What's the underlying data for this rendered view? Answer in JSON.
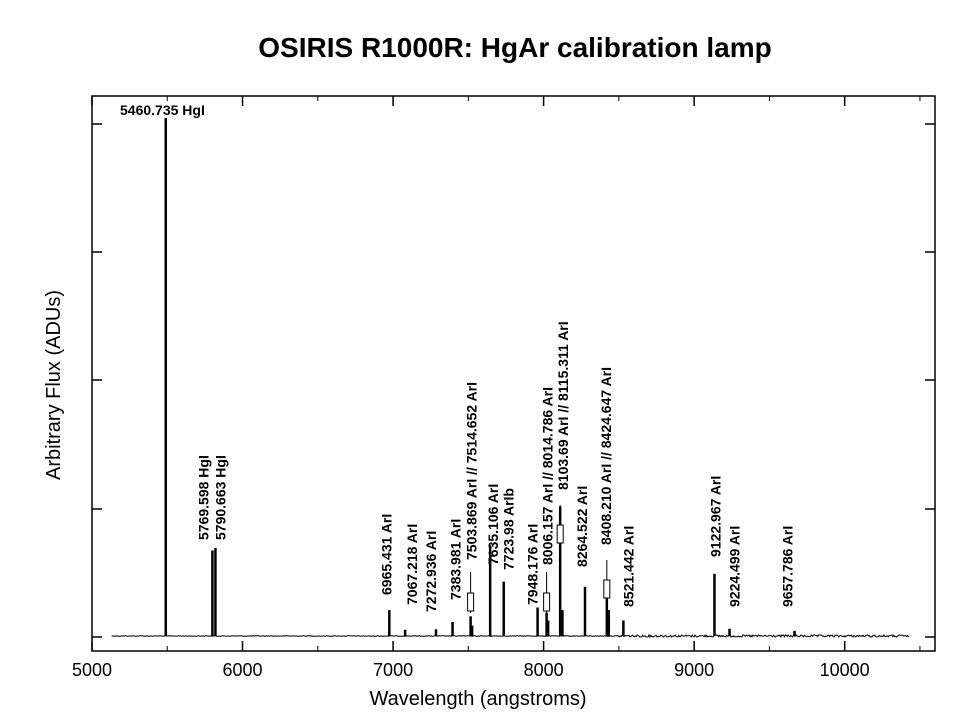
{
  "chart_data": {
    "type": "line",
    "title": "OSIRIS  R1000R:  HgAr calibration lamp",
    "xlabel": "Wavelength (angstroms)",
    "ylabel": "Arbitrary Flux (ADUs)",
    "xlim": [
      5000,
      10600
    ],
    "ylim": [
      0,
      1.05
    ],
    "x_ticks": [
      5000,
      6000,
      7000,
      8000,
      9000,
      10000
    ],
    "x_tick_labels": [
      "5000",
      "6000",
      "7000",
      "8000",
      "9000",
      "10000"
    ],
    "y_tick_labels": [],
    "grid": false,
    "legend": "none",
    "line_color": "#000000",
    "continuum_start": 5130,
    "continuum_end": 10430,
    "peaks": [
      {
        "x": 5490,
        "y": 1.0
      },
      {
        "x": 5800,
        "y": 0.165
      },
      {
        "x": 5820,
        "y": 0.17
      },
      {
        "x": 6975,
        "y": 0.05
      },
      {
        "x": 7080,
        "y": 0.012
      },
      {
        "x": 7285,
        "y": 0.013
      },
      {
        "x": 7395,
        "y": 0.027
      },
      {
        "x": 7515,
        "y": 0.038
      },
      {
        "x": 7525,
        "y": 0.02
      },
      {
        "x": 7645,
        "y": 0.175
      },
      {
        "x": 7735,
        "y": 0.105
      },
      {
        "x": 7960,
        "y": 0.055
      },
      {
        "x": 8020,
        "y": 0.045
      },
      {
        "x": 8030,
        "y": 0.03
      },
      {
        "x": 8110,
        "y": 0.25
      },
      {
        "x": 8125,
        "y": 0.05
      },
      {
        "x": 8275,
        "y": 0.095
      },
      {
        "x": 8420,
        "y": 0.095
      },
      {
        "x": 8433,
        "y": 0.05
      },
      {
        "x": 8530,
        "y": 0.03
      },
      {
        "x": 9135,
        "y": 0.12
      },
      {
        "x": 9235,
        "y": 0.014
      },
      {
        "x": 9667,
        "y": 0.01
      }
    ],
    "annotations": [
      {
        "wavelength": 5490,
        "text": "5460.735 HgI",
        "orientation": "horizontal"
      },
      {
        "wavelength": 5800,
        "text": "5769.598 HgI",
        "orientation": "vertical"
      },
      {
        "wavelength": 5820,
        "text": "5790.663 HgI",
        "orientation": "vertical"
      },
      {
        "wavelength": 6975,
        "text": "6965.431 ArI",
        "orientation": "vertical"
      },
      {
        "wavelength": 7080,
        "text": "7067.218 ArI",
        "orientation": "vertical"
      },
      {
        "wavelength": 7285,
        "text": "7272.936 ArI",
        "orientation": "vertical"
      },
      {
        "wavelength": 7395,
        "text": "7383.981 ArI",
        "orientation": "vertical"
      },
      {
        "wavelength": 7515,
        "text": "7503.869 ArI // 7514.652 ArI",
        "orientation": "vertical"
      },
      {
        "wavelength": 7645,
        "text": "7635.106 ArI",
        "orientation": "vertical"
      },
      {
        "wavelength": 7735,
        "text": "7723.98  ArIb",
        "orientation": "vertical"
      },
      {
        "wavelength": 7960,
        "text": "7948.176  ArI",
        "orientation": "vertical"
      },
      {
        "wavelength": 8020,
        "text": "8006.157 ArI // 8014.786 ArI",
        "orientation": "vertical"
      },
      {
        "wavelength": 8110,
        "text": "8103.69 ArI // 8115.311  ArI",
        "orientation": "vertical"
      },
      {
        "wavelength": 8275,
        "text": "8264.522  ArI",
        "orientation": "vertical"
      },
      {
        "wavelength": 8420,
        "text": "8408.210 ArI // 8424.647  ArI",
        "orientation": "vertical"
      },
      {
        "wavelength": 8530,
        "text": "8521.442  ArI",
        "orientation": "vertical"
      },
      {
        "wavelength": 9135,
        "text": "9122.967 ArI",
        "orientation": "vertical"
      },
      {
        "wavelength": 9235,
        "text": "9224.499  ArI",
        "orientation": "vertical"
      },
      {
        "wavelength": 9667,
        "text": "9657.786  ArI",
        "orientation": "vertical"
      }
    ]
  }
}
